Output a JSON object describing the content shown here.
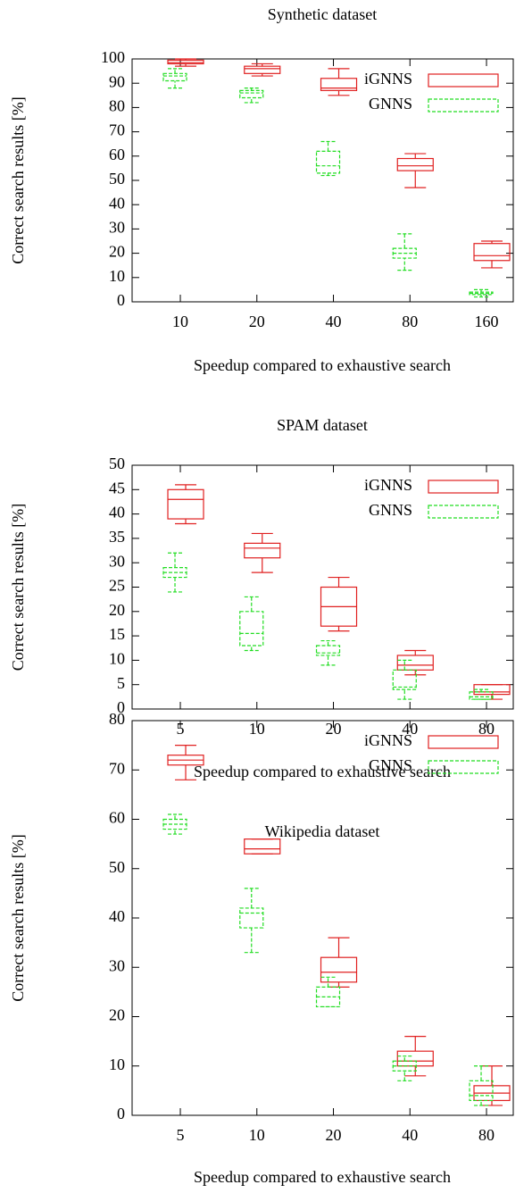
{
  "chart_data": [
    {
      "type": "box",
      "title": "Synthetic dataset",
      "xlabel": "Speedup compared to exhaustive search",
      "ylabel": "Correct search results [%]",
      "categories": [
        "10",
        "20",
        "40",
        "80",
        "160"
      ],
      "ylim": [
        0,
        100
      ],
      "yticks": [
        0,
        10,
        20,
        30,
        40,
        50,
        60,
        70,
        80,
        90,
        100
      ],
      "legend": "upper right",
      "series": [
        {
          "name": "iGNNS",
          "color": "#e02020",
          "line_style": "solid",
          "min": [
            97,
            93,
            85,
            47,
            14
          ],
          "q1": [
            98,
            94,
            87,
            54,
            17
          ],
          "median": [
            98.5,
            96,
            88,
            56,
            19
          ],
          "q3": [
            99.5,
            97,
            92,
            59,
            24
          ],
          "max": [
            100,
            98,
            96,
            61,
            25
          ]
        },
        {
          "name": "GNNS",
          "color": "#22dd22",
          "line_style": "dashed",
          "min": [
            88,
            82,
            52,
            13,
            2
          ],
          "q1": [
            91,
            84,
            53,
            18,
            3
          ],
          "median": [
            93,
            86,
            56,
            20,
            3.5
          ],
          "q3": [
            94,
            87,
            62,
            22,
            4
          ],
          "max": [
            96,
            88,
            66,
            28,
            5
          ]
        }
      ]
    },
    {
      "type": "box",
      "title": "SPAM dataset",
      "xlabel": "Speedup compared to exhaustive search",
      "ylabel": "Correct search results [%]",
      "categories": [
        "5",
        "10",
        "20",
        "40",
        "80"
      ],
      "ylim": [
        0,
        50
      ],
      "yticks": [
        0,
        5,
        10,
        15,
        20,
        25,
        30,
        35,
        40,
        45,
        50
      ],
      "legend": "upper right",
      "series": [
        {
          "name": "iGNNS",
          "color": "#e02020",
          "line_style": "solid",
          "min": [
            38,
            28,
            16,
            7,
            2
          ],
          "q1": [
            39,
            31,
            17,
            8,
            3
          ],
          "median": [
            43,
            33,
            21,
            9,
            3.5
          ],
          "q3": [
            45,
            34,
            25,
            11,
            5
          ],
          "max": [
            46,
            36,
            27,
            12,
            5
          ]
        },
        {
          "name": "GNNS",
          "color": "#22dd22",
          "line_style": "dashed",
          "min": [
            24,
            12,
            9,
            2,
            2
          ],
          "q1": [
            27,
            13,
            11,
            4,
            2
          ],
          "median": [
            28,
            15.5,
            11.5,
            4.5,
            2.5
          ],
          "q3": [
            29,
            20,
            13,
            8,
            3.5
          ],
          "max": [
            32,
            23,
            14,
            10,
            4
          ]
        }
      ]
    },
    {
      "type": "box",
      "title": "Wikipedia dataset",
      "xlabel": "Speedup compared to exhaustive search",
      "ylabel": "Correct search results [%]",
      "categories": [
        "5",
        "10",
        "20",
        "40",
        "80"
      ],
      "ylim": [
        0,
        80
      ],
      "yticks": [
        0,
        10,
        20,
        30,
        40,
        50,
        60,
        70,
        80
      ],
      "legend": "upper right",
      "series": [
        {
          "name": "iGNNS",
          "color": "#e02020",
          "line_style": "solid",
          "min": [
            68,
            53,
            26,
            8,
            2
          ],
          "q1": [
            71,
            53,
            27,
            10,
            3
          ],
          "median": [
            72,
            54,
            29,
            11,
            4.5
          ],
          "q3": [
            73,
            56,
            32,
            13,
            6
          ],
          "max": [
            75,
            56,
            36,
            16,
            10
          ]
        },
        {
          "name": "GNNS",
          "color": "#22dd22",
          "line_style": "dashed",
          "min": [
            57,
            33,
            22,
            7,
            2
          ],
          "q1": [
            58,
            38,
            22,
            9,
            3
          ],
          "median": [
            59,
            41,
            24,
            10,
            4
          ],
          "q3": [
            60,
            42,
            26,
            11,
            7
          ],
          "max": [
            61,
            46,
            28,
            12,
            10
          ]
        }
      ]
    }
  ]
}
